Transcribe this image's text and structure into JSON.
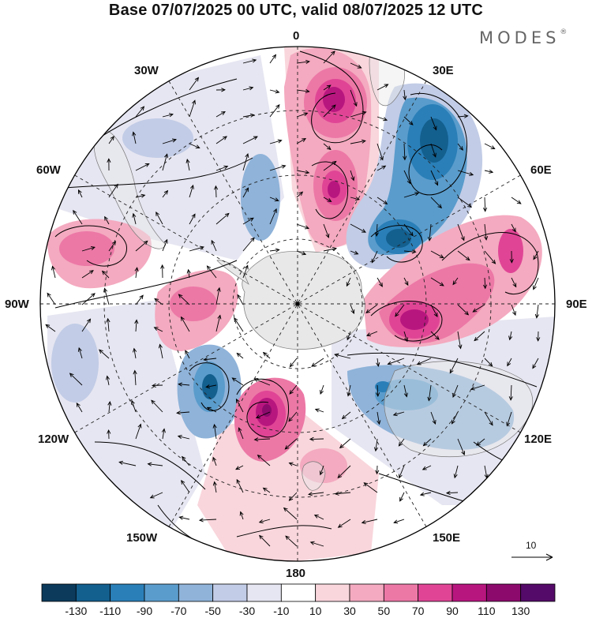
{
  "title": "Base 07/07/2025 00 UTC, valid 08/07/2025 12 UTC",
  "brand": "MODES",
  "brand_mark": "®",
  "longitude_labels": {
    "lon_0": "0",
    "lon_30e": "30E",
    "lon_60e": "60E",
    "lon_90e": "90E",
    "lon_120e": "120E",
    "lon_150e": "150E",
    "lon_180": "180",
    "lon_150w": "150W",
    "lon_120w": "120W",
    "lon_90w": "90W",
    "lon_60w": "60W",
    "lon_30w": "30W"
  },
  "reference_vector": {
    "label": "10"
  },
  "colorbar": {
    "labels": [
      "-130",
      "-110",
      "-90",
      "-70",
      "-50",
      "-30",
      "-10",
      "10",
      "30",
      "50",
      "70",
      "90",
      "110",
      "130"
    ],
    "colors": [
      "#0b3a5b",
      "#135f8e",
      "#2a7fb8",
      "#5a9ccc",
      "#8fb3d9",
      "#c2cce6",
      "#e6e6f2",
      "#ffffff",
      "#f9d6dc",
      "#f4aac0",
      "#ec78a6",
      "#e04595",
      "#b8167f",
      "#8c0a6c",
      "#540a68"
    ]
  },
  "map_colors": {
    "land": "#e8e8e8",
    "coast": "#777777",
    "grid": "#222222",
    "vector": "#000000",
    "contour": "#000000"
  }
}
